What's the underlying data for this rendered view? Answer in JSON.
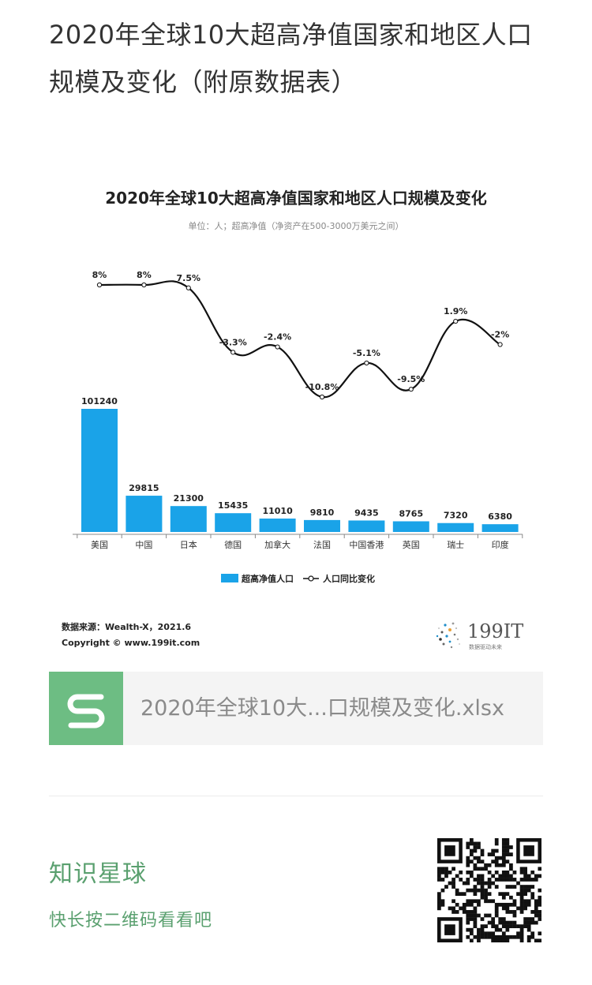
{
  "page_title": "2020年全球10大超高净值国家和地区人口规模及变化（附原数据表）",
  "chart_data": {
    "type": "bar",
    "title": "2020年全球10大超高净值国家和地区人口规模及变化",
    "subtitle": "单位：人；超高净值（净资产在500-3000万美元之间）",
    "categories": [
      "美国",
      "中国",
      "日本",
      "德国",
      "加拿大",
      "法国",
      "中国香港",
      "英国",
      "瑞士",
      "印度"
    ],
    "series": [
      {
        "name": "超高净值人口",
        "kind": "bar",
        "color": "#1aa3e8",
        "values": [
          101240,
          29815,
          21300,
          15435,
          11010,
          9810,
          9435,
          8765,
          7320,
          6380
        ]
      },
      {
        "name": "人口同比变化",
        "kind": "line",
        "color": "#111111",
        "values": [
          8,
          8,
          7.5,
          -3.3,
          -2.4,
          -10.8,
          -5.1,
          -9.5,
          1.9,
          -2
        ],
        "labels": [
          "8%",
          "8%",
          "7.5%",
          "-3.3%",
          "-2.4%",
          "-10.8%",
          "-5.1%",
          "-9.5%",
          "1.9%",
          "-2%"
        ]
      }
    ],
    "legend": [
      "超高净值人口",
      "人口同比变化"
    ],
    "legend_position": "bottom",
    "grid": false,
    "source": "数据来源：Wealth-X，2021.6",
    "copyright": "Copyright © www.199it.com",
    "logo": {
      "text": "199IT",
      "tagline": "数据驱动未来"
    }
  },
  "file_card": {
    "name": "2020年全球10大...口规模及变化.xlsx",
    "icon": "s-file-icon"
  },
  "knowledge_planet": {
    "title": "知识星球",
    "subtitle": "快长按二维码看看吧"
  },
  "qr_code": {
    "icon": "qr-code"
  }
}
